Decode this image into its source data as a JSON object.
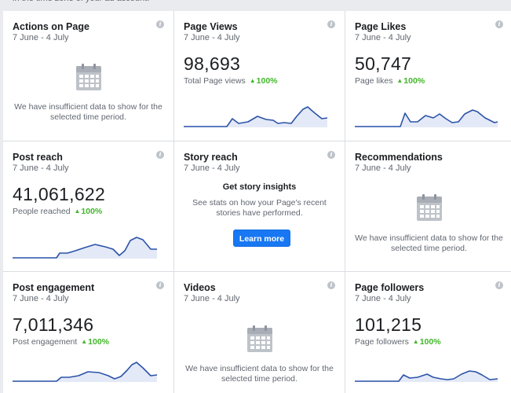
{
  "cards": [
    {
      "title": "Actions on Page",
      "date": "7 June - 4 July",
      "empty": "We have insufficient data to show for the selected time period."
    },
    {
      "title": "Page Views",
      "date": "7 June - 4 July",
      "value": "98,693",
      "label": "Total Page views",
      "change": "100%"
    },
    {
      "title": "Page Likes",
      "date": "7 June - 4 July",
      "value": "50,747",
      "label": "Page likes",
      "change": "100%"
    },
    {
      "title": "Post reach",
      "date": "7 June - 4 July",
      "value": "41,061,622",
      "label": "People reached",
      "change": "100%"
    },
    {
      "title": "Story reach",
      "date": "7 June - 4 July",
      "heading": "Get story insights",
      "text": "See stats on how your Page's recent stories have performed.",
      "button": "Learn more"
    },
    {
      "title": "Recommendations",
      "date": "7 June - 4 July",
      "empty": "We have insufficient data to show for the selected time period."
    },
    {
      "title": "Post engagement",
      "date": "7 June - 4 July",
      "value": "7,011,346",
      "label": "Post engagement",
      "change": "100%"
    },
    {
      "title": "Videos",
      "date": "7 June - 4 July",
      "empty": "We have insufficient data to show for the selected time period."
    },
    {
      "title": "Page followers",
      "date": "7 June - 4 July",
      "value": "101,215",
      "label": "Page followers",
      "change": "100%"
    }
  ],
  "icons": {
    "info": "info-icon",
    "calendar": "calendar-icon",
    "trend": "up-triangle-icon"
  },
  "colors": {
    "accent": "#1877f2",
    "positive": "#42b72a",
    "line": "#2b53a8"
  }
}
